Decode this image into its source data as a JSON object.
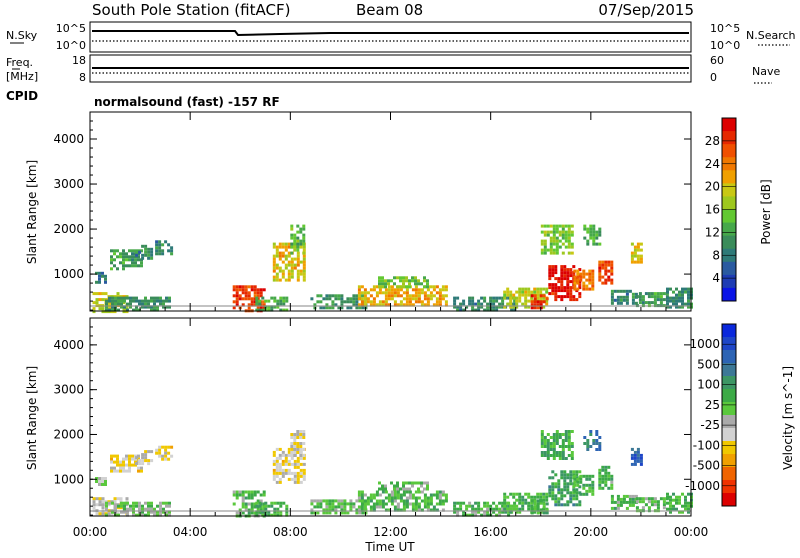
{
  "header": {
    "station": "South Pole Station (fitACF)",
    "beam": "Beam 08",
    "date": "07/Sep/2015"
  },
  "panels": {
    "nsky": {
      "label": "N.Sky",
      "ticks": [
        "10^5",
        "10^0"
      ]
    },
    "nsearch": {
      "label": "N.Search",
      "ticks": [
        "10^5",
        "10^0"
      ]
    },
    "freq": {
      "label_line1": "Freq.",
      "label_line2": "[MHz]",
      "ticks": [
        "18",
        "8"
      ]
    },
    "nave": {
      "label": "Nave",
      "ticks": [
        "60",
        "0"
      ]
    },
    "cpid": {
      "label": "CPID",
      "text": "normalsound (fast) -157 RF"
    }
  },
  "chart_data": [
    {
      "type": "heatmap",
      "name": "power",
      "ylabel": "Slant Range [km]",
      "xlabel": "",
      "x_ticks": [
        "00:00",
        "04:00",
        "08:00",
        "12:00",
        "16:00",
        "20:00",
        "00:00"
      ],
      "y_ticks": [
        "1000",
        "2000",
        "3000",
        "4000"
      ],
      "ylim": [
        180,
        4600
      ],
      "xlim_hours": [
        0,
        24
      ],
      "colorbar": {
        "label": "Power [dB]",
        "ticks": [
          "4",
          "8",
          "12",
          "16",
          "20",
          "24",
          "28"
        ],
        "range": [
          0,
          30
        ],
        "colors": [
          "#0a14e6",
          "#1e3cb4",
          "#2a5aa0",
          "#2e7a78",
          "#3a8c5a",
          "#46a84a",
          "#62c832",
          "#9ec81e",
          "#c8c814",
          "#f0a000",
          "#f07800",
          "#f05000",
          "#e62800",
          "#dc0000"
        ]
      },
      "regions": [
        {
          "h0": 0.1,
          "h1": 1.5,
          "r0": 200,
          "r1": 600,
          "v": 18
        },
        {
          "h0": 0.6,
          "h1": 3.2,
          "r0": 200,
          "r1": 500,
          "v": 10
        },
        {
          "h0": 0.8,
          "h1": 2.0,
          "r0": 1150,
          "r1": 1550,
          "v": 11
        },
        {
          "h0": 1.8,
          "h1": 2.5,
          "r0": 1350,
          "r1": 1650,
          "v": 9
        },
        {
          "h0": 2.6,
          "h1": 3.2,
          "r0": 1450,
          "r1": 1750,
          "v": 9
        },
        {
          "h0": 5.7,
          "h1": 6.9,
          "r0": 200,
          "r1": 750,
          "v": 26
        },
        {
          "h0": 6.6,
          "h1": 7.8,
          "r0": 200,
          "r1": 500,
          "v": 12
        },
        {
          "h0": 7.3,
          "h1": 8.6,
          "r0": 900,
          "r1": 1700,
          "v": 19
        },
        {
          "h0": 8.0,
          "h1": 8.5,
          "r0": 1500,
          "r1": 2100,
          "v": 13
        },
        {
          "h0": 8.8,
          "h1": 11.0,
          "r0": 250,
          "r1": 550,
          "v": 10
        },
        {
          "h0": 10.7,
          "h1": 14.2,
          "r0": 300,
          "r1": 750,
          "v": 20
        },
        {
          "h0": 11.5,
          "h1": 13.5,
          "r0": 750,
          "r1": 950,
          "v": 14
        },
        {
          "h0": 14.5,
          "h1": 17.0,
          "r0": 200,
          "r1": 500,
          "v": 9
        },
        {
          "h0": 16.5,
          "h1": 18.2,
          "r0": 250,
          "r1": 700,
          "v": 17
        },
        {
          "h0": 17.6,
          "h1": 18.3,
          "r0": 250,
          "r1": 550,
          "v": 27
        },
        {
          "h0": 18.3,
          "h1": 19.5,
          "r0": 450,
          "r1": 1200,
          "v": 28
        },
        {
          "h0": 18.0,
          "h1": 19.2,
          "r0": 1450,
          "r1": 2100,
          "v": 15
        },
        {
          "h0": 19.3,
          "h1": 20.1,
          "r0": 650,
          "r1": 1100,
          "v": 22
        },
        {
          "h0": 20.3,
          "h1": 20.8,
          "r0": 800,
          "r1": 1300,
          "v": 26
        },
        {
          "h0": 19.7,
          "h1": 20.4,
          "r0": 1650,
          "r1": 2100,
          "v": 12
        },
        {
          "h0": 20.8,
          "h1": 21.8,
          "r0": 350,
          "r1": 650,
          "v": 9
        },
        {
          "h0": 21.6,
          "h1": 22.0,
          "r0": 1300,
          "r1": 1700,
          "v": 18
        },
        {
          "h0": 21.8,
          "h1": 23.0,
          "r0": 300,
          "r1": 600,
          "v": 11
        },
        {
          "h0": 23.0,
          "h1": 24.0,
          "r0": 250,
          "r1": 700,
          "v": 9
        },
        {
          "h0": 0.2,
          "h1": 0.6,
          "r0": 850,
          "r1": 1050,
          "v": 7
        }
      ]
    },
    {
      "type": "heatmap",
      "name": "velocity",
      "ylabel": "Slant Range [km]",
      "xlabel": "Time UT",
      "x_ticks": [
        "00:00",
        "04:00",
        "08:00",
        "12:00",
        "16:00",
        "20:00",
        "00:00"
      ],
      "y_ticks": [
        "1000",
        "2000",
        "3000",
        "4000"
      ],
      "ylim": [
        180,
        4600
      ],
      "xlim_hours": [
        0,
        24
      ],
      "colorbar": {
        "label": "Velocity [m s^-1]",
        "ticks": [
          "-1000",
          "-500",
          "-100",
          "-25",
          "25",
          "100",
          "500",
          "1000"
        ],
        "range": [
          -1100,
          1100
        ],
        "colors": [
          "#dc0000",
          "#f03200",
          "#f06400",
          "#f0a000",
          "#f0c800",
          "#d2d2d2",
          "#aaaaaa",
          "#5ac83c",
          "#3caa46",
          "#3c9664",
          "#3c7896",
          "#2d64b4",
          "#1e46c8",
          "#0a28dc"
        ]
      },
      "regions": [
        {
          "h0": 0.1,
          "h1": 1.5,
          "r0": 200,
          "r1": 600,
          "v": -250
        },
        {
          "h0": 0.6,
          "h1": 3.2,
          "r0": 200,
          "r1": 500,
          "v": 40
        },
        {
          "h0": 0.8,
          "h1": 2.0,
          "r0": 1150,
          "r1": 1550,
          "v": -300
        },
        {
          "h0": 1.8,
          "h1": 2.5,
          "r0": 1350,
          "r1": 1650,
          "v": -250
        },
        {
          "h0": 2.6,
          "h1": 3.2,
          "r0": 1450,
          "r1": 1750,
          "v": -300
        },
        {
          "h0": 5.7,
          "h1": 6.9,
          "r0": 200,
          "r1": 750,
          "v": 150
        },
        {
          "h0": 6.6,
          "h1": 7.8,
          "r0": 200,
          "r1": 500,
          "v": 200
        },
        {
          "h0": 7.3,
          "h1": 8.6,
          "r0": 900,
          "r1": 1700,
          "v": -300
        },
        {
          "h0": 8.0,
          "h1": 8.5,
          "r0": 1500,
          "r1": 2100,
          "v": -200
        },
        {
          "h0": 8.8,
          "h1": 11.0,
          "r0": 250,
          "r1": 550,
          "v": 120
        },
        {
          "h0": 10.7,
          "h1": 14.2,
          "r0": 300,
          "r1": 750,
          "v": 150
        },
        {
          "h0": 11.5,
          "h1": 13.5,
          "r0": 750,
          "r1": 950,
          "v": 100
        },
        {
          "h0": 14.5,
          "h1": 17.0,
          "r0": 200,
          "r1": 500,
          "v": 150
        },
        {
          "h0": 16.5,
          "h1": 18.2,
          "r0": 250,
          "r1": 700,
          "v": 200
        },
        {
          "h0": 17.6,
          "h1": 18.3,
          "r0": 250,
          "r1": 550,
          "v": 250
        },
        {
          "h0": 18.3,
          "h1": 19.5,
          "r0": 450,
          "r1": 1200,
          "v": 300
        },
        {
          "h0": 18.0,
          "h1": 19.2,
          "r0": 1450,
          "r1": 2100,
          "v": 250
        },
        {
          "h0": 19.3,
          "h1": 20.1,
          "r0": 650,
          "r1": 1100,
          "v": 200
        },
        {
          "h0": 20.3,
          "h1": 20.8,
          "r0": 800,
          "r1": 1300,
          "v": 180
        },
        {
          "h0": 19.7,
          "h1": 20.4,
          "r0": 1650,
          "r1": 2100,
          "v": 600
        },
        {
          "h0": 20.8,
          "h1": 21.8,
          "r0": 350,
          "r1": 650,
          "v": 150
        },
        {
          "h0": 21.6,
          "h1": 22.0,
          "r0": 1300,
          "r1": 1700,
          "v": 700
        },
        {
          "h0": 21.8,
          "h1": 23.0,
          "r0": 300,
          "r1": 600,
          "v": 150
        },
        {
          "h0": 23.0,
          "h1": 24.0,
          "r0": 250,
          "r1": 700,
          "v": 200
        },
        {
          "h0": 0.2,
          "h1": 0.6,
          "r0": 850,
          "r1": 1050,
          "v": -50
        }
      ]
    }
  ]
}
